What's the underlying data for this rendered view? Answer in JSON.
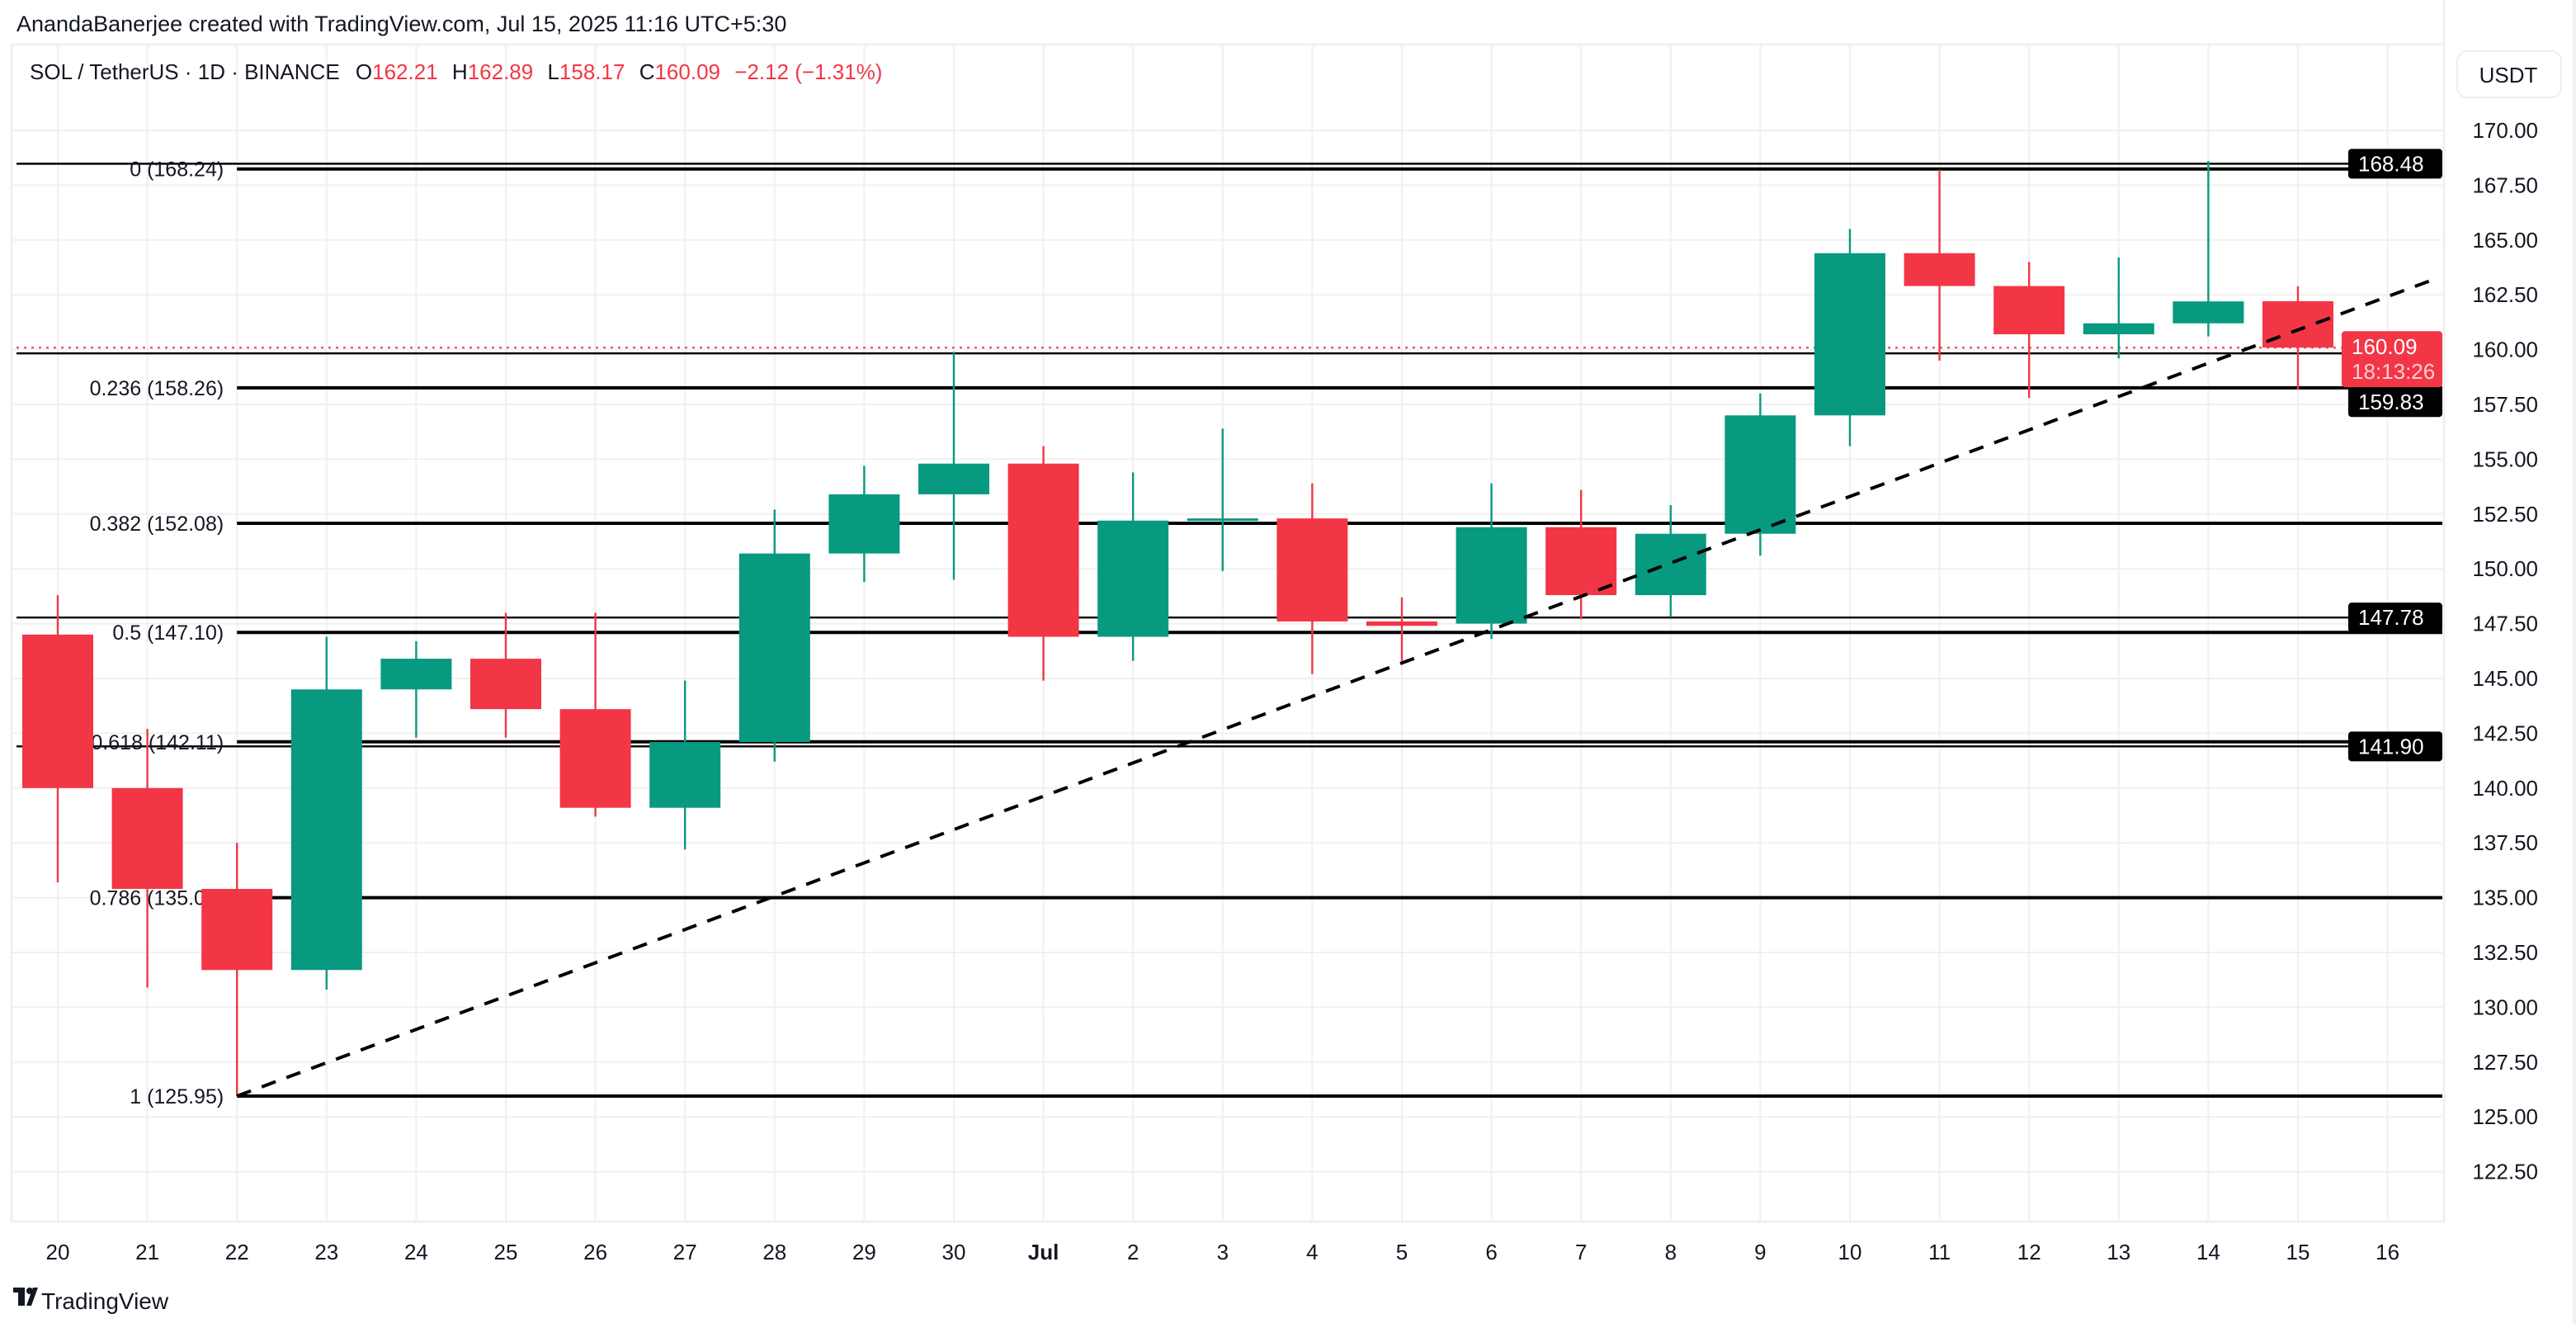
{
  "header": {
    "attribution": "AnandaBanerjee created with TradingView.com, Jul 15, 2025 11:16 UTC+5:30"
  },
  "legend": {
    "symbol": "SOL / TetherUS · 1D · BINANCE",
    "o_label": "O",
    "o_value": "162.21",
    "h_label": "H",
    "h_value": "162.89",
    "l_label": "L",
    "l_value": "158.17",
    "c_label": "C",
    "c_value": "160.09",
    "change": "−2.12 (−1.31%)"
  },
  "currency_button": "USDT",
  "footer": {
    "logo_text": "TradingView"
  },
  "colors": {
    "up": "#089981",
    "down": "#f23645",
    "grid": "#f0f0f0",
    "text": "#131722",
    "line": "#000000"
  },
  "chart_data": {
    "type": "candlestick",
    "ylim": [
      121,
      172.5
    ],
    "y_ticks": [
      "170.00",
      "167.50",
      "165.00",
      "162.50",
      "160.00",
      "157.50",
      "155.00",
      "152.50",
      "150.00",
      "147.50",
      "145.00",
      "142.50",
      "140.00",
      "137.50",
      "135.00",
      "132.50",
      "130.00",
      "127.50",
      "125.00",
      "122.50"
    ],
    "x_labels": [
      "20",
      "21",
      "22",
      "23",
      "24",
      "25",
      "26",
      "27",
      "28",
      "29",
      "30",
      "Jul",
      "2",
      "3",
      "4",
      "5",
      "6",
      "7",
      "8",
      "9",
      "10",
      "11",
      "12",
      "13",
      "14",
      "15",
      "16"
    ],
    "grid": true,
    "candles": [
      {
        "date": "Jun 20",
        "o": 147.0,
        "h": 148.8,
        "l": 135.7,
        "c": 140.0
      },
      {
        "date": "Jun 21",
        "o": 140.0,
        "h": 142.7,
        "l": 130.9,
        "c": 135.4
      },
      {
        "date": "Jun 22",
        "o": 135.4,
        "h": 137.5,
        "l": 125.95,
        "c": 131.7
      },
      {
        "date": "Jun 23",
        "o": 131.7,
        "h": 146.9,
        "l": 130.8,
        "c": 144.5
      },
      {
        "date": "Jun 24",
        "o": 144.5,
        "h": 146.7,
        "l": 142.3,
        "c": 145.9
      },
      {
        "date": "Jun 25",
        "o": 145.9,
        "h": 148.0,
        "l": 142.3,
        "c": 143.6
      },
      {
        "date": "Jun 26",
        "o": 143.6,
        "h": 148.0,
        "l": 138.7,
        "c": 139.1
      },
      {
        "date": "Jun 27",
        "o": 139.1,
        "h": 144.9,
        "l": 137.2,
        "c": 142.1
      },
      {
        "date": "Jun 28",
        "o": 142.1,
        "h": 152.7,
        "l": 141.2,
        "c": 150.7
      },
      {
        "date": "Jun 29",
        "o": 150.7,
        "h": 154.7,
        "l": 149.4,
        "c": 153.4
      },
      {
        "date": "Jun 30",
        "o": 153.4,
        "h": 159.9,
        "l": 149.5,
        "c": 154.8
      },
      {
        "date": "Jul 1",
        "o": 154.8,
        "h": 155.6,
        "l": 144.9,
        "c": 146.9
      },
      {
        "date": "Jul 2",
        "o": 146.9,
        "h": 154.4,
        "l": 145.8,
        "c": 152.2
      },
      {
        "date": "Jul 3",
        "o": 152.2,
        "h": 156.4,
        "l": 149.9,
        "c": 152.3
      },
      {
        "date": "Jul 4",
        "o": 152.3,
        "h": 153.9,
        "l": 145.2,
        "c": 147.6
      },
      {
        "date": "Jul 5",
        "o": 147.6,
        "h": 148.7,
        "l": 145.8,
        "c": 147.4
      },
      {
        "date": "Jul 6",
        "o": 147.5,
        "h": 153.9,
        "l": 146.8,
        "c": 151.9
      },
      {
        "date": "Jul 7",
        "o": 151.9,
        "h": 153.6,
        "l": 147.7,
        "c": 148.8
      },
      {
        "date": "Jul 8",
        "o": 148.8,
        "h": 152.9,
        "l": 147.8,
        "c": 151.6
      },
      {
        "date": "Jul 9",
        "o": 151.6,
        "h": 158.0,
        "l": 150.6,
        "c": 157.0
      },
      {
        "date": "Jul 10",
        "o": 157.0,
        "h": 165.5,
        "l": 155.6,
        "c": 164.4
      },
      {
        "date": "Jul 11",
        "o": 164.4,
        "h": 168.2,
        "l": 159.5,
        "c": 162.9
      },
      {
        "date": "Jul 12",
        "o": 162.9,
        "h": 164.0,
        "l": 157.8,
        "c": 160.7
      },
      {
        "date": "Jul 13",
        "o": 160.7,
        "h": 164.2,
        "l": 159.6,
        "c": 161.2
      },
      {
        "date": "Jul 14",
        "o": 161.2,
        "h": 168.6,
        "l": 160.6,
        "c": 162.2
      },
      {
        "date": "Jul 15",
        "o": 162.21,
        "h": 162.89,
        "l": 158.17,
        "c": 160.09
      }
    ],
    "fib_levels": [
      {
        "label": "0 (168.24)",
        "value": 168.24
      },
      {
        "label": "0.236 (158.26)",
        "value": 158.26
      },
      {
        "label": "0.382 (152.08)",
        "value": 152.08
      },
      {
        "label": "0.5 (147.10)",
        "value": 147.1
      },
      {
        "label": "0.618 (142.11)",
        "value": 142.11
      },
      {
        "label": "0.786 (135.00)",
        "value": 135.0
      },
      {
        "label": "1 (125.95)",
        "value": 125.95
      }
    ],
    "horizontal_rays": [
      {
        "label": "168.48",
        "value": 168.48
      },
      {
        "label": "159.83",
        "value": 159.83
      },
      {
        "label": "147.78",
        "value": 147.78
      },
      {
        "label": "141.90",
        "value": 141.9
      }
    ],
    "trendline": {
      "style": "dashed",
      "extend": "right",
      "p1": {
        "date": "Jun 22",
        "price": 125.95
      },
      "p2": {
        "date": "Jul 15",
        "price": 160.9
      }
    },
    "last_price": {
      "value": 160.09,
      "label": "160.09",
      "countdown": "18:13:26"
    }
  }
}
